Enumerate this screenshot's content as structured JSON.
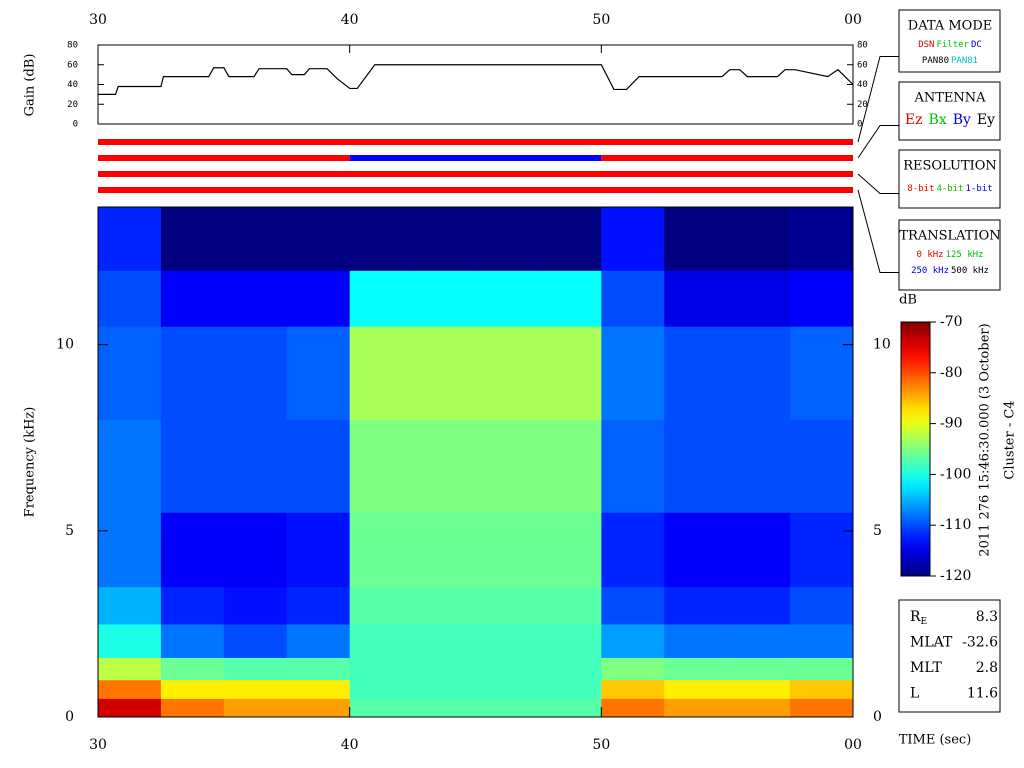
{
  "chart_data": [
    {
      "type": "line",
      "ylabel": "Gain (dB)",
      "color": "#000000",
      "x": [
        30,
        30.7,
        30.8,
        32.5,
        32.6,
        34.4,
        34.6,
        35,
        35.2,
        36.2,
        36.4,
        37.5,
        37.7,
        38.2,
        38.4,
        39.1,
        39.5,
        40,
        40.3,
        41,
        50,
        50.5,
        51,
        51.5,
        54.8,
        55.1,
        55.5,
        55.8,
        57,
        57.3,
        57.7,
        59,
        59.4,
        60
      ],
      "values": [
        30,
        30,
        38,
        38,
        48,
        48,
        57,
        57,
        48,
        48,
        56,
        56,
        50,
        50,
        56,
        56,
        46,
        36,
        36,
        60,
        60,
        35,
        35,
        48,
        48,
        55,
        55,
        48,
        48,
        55,
        55,
        48,
        55,
        40
      ],
      "xlim": [
        30,
        60
      ],
      "xticks": [
        30,
        40,
        50,
        {
          "value": 60,
          "label": "00"
        }
      ],
      "ylim": [
        0,
        80
      ],
      "yticks": [
        0,
        20,
        40,
        60,
        80
      ]
    },
    {
      "type": "segments",
      "xlim": [
        30,
        60
      ],
      "rows": [
        [
          {
            "start": 30,
            "end": 60,
            "color": "#ff0000"
          }
        ],
        [
          {
            "start": 30,
            "end": 40,
            "color": "#ff0000"
          },
          {
            "start": 40,
            "end": 50,
            "color": "#0000ff"
          },
          {
            "start": 50,
            "end": 60,
            "color": "#ff0000"
          }
        ],
        [
          {
            "start": 30,
            "end": 60,
            "color": "#ff0000"
          }
        ],
        [
          {
            "start": 30,
            "end": 60,
            "color": "#ff0000"
          }
        ]
      ]
    },
    {
      "type": "heatmap",
      "ylabel": "Frequency (kHz)",
      "xlabel": "TIME (sec)",
      "colormap": "jet",
      "x_edges": [
        30,
        32.5,
        35,
        37.5,
        40,
        42.5,
        45,
        47.5,
        50,
        52.5,
        55,
        57.5,
        60
      ],
      "y_edges": [
        0,
        0.5,
        1,
        1.6,
        2.5,
        3.5,
        5.5,
        8,
        10.5,
        12,
        13.7
      ],
      "z": [
        [
          -74,
          -82,
          -84,
          -84,
          -97,
          -97,
          -97,
          -97,
          -82,
          -84,
          -84,
          -82
        ],
        [
          -82,
          -88,
          -88,
          -88,
          -98,
          -98,
          -98,
          -98,
          -86,
          -88,
          -88,
          -86
        ],
        [
          -92,
          -96,
          -97,
          -97,
          -98,
          -98,
          -98,
          -98,
          -95,
          -96,
          -96,
          -96
        ],
        [
          -100,
          -108,
          -110,
          -108,
          -98,
          -98,
          -98,
          -98,
          -106,
          -108,
          -108,
          -108
        ],
        [
          -105,
          -112,
          -113,
          -112,
          -97,
          -97,
          -97,
          -97,
          -110,
          -112,
          -112,
          -110
        ],
        [
          -108,
          -114,
          -114,
          -113,
          -96,
          -96,
          -96,
          -96,
          -112,
          -114,
          -114,
          -112
        ],
        [
          -108,
          -110,
          -110,
          -110,
          -95,
          -95,
          -95,
          -95,
          -109,
          -110,
          -110,
          -110
        ],
        [
          -109,
          -110,
          -110,
          -109,
          -93,
          -93,
          -93,
          -93,
          -108,
          -110,
          -110,
          -109
        ],
        [
          -110,
          -114,
          -114,
          -114,
          -101,
          -101,
          -101,
          -101,
          -110,
          -115,
          -115,
          -114
        ],
        [
          -112,
          -120,
          -120,
          -120,
          -120,
          -120,
          -120,
          -120,
          -113,
          -120,
          -120,
          -119
        ]
      ],
      "xlim": [
        30,
        60
      ],
      "xticks": [
        30,
        40,
        50,
        {
          "value": 60,
          "label": "00"
        }
      ],
      "ylim": [
        0,
        13.7
      ],
      "yticks": [
        0,
        5,
        10
      ],
      "colorbar": {
        "label": "dB",
        "lim": [
          -120,
          -70
        ],
        "ticks": [
          -70,
          -80,
          -90,
          -100,
          -110,
          -120
        ]
      }
    }
  ],
  "side_panels": [
    {
      "title": "DATA MODE",
      "rows": [
        [
          {
            "text": "DSN",
            "color": "#e00000"
          },
          {
            "text": "Filter",
            "color": "#00c000"
          },
          {
            "text": "DC",
            "color": "#0000e0"
          }
        ],
        [
          {
            "text": "PAN80",
            "color": "#000000"
          },
          {
            "text": "PAN81",
            "color": "#00c0c0"
          }
        ]
      ]
    },
    {
      "title": "ANTENNA",
      "rows": [
        [
          {
            "text": "Ez",
            "color": "#e00000"
          },
          {
            "text": "Bx",
            "color": "#00c000"
          },
          {
            "text": "By",
            "color": "#0000e0"
          },
          {
            "text": "Ey",
            "color": "#000000"
          }
        ]
      ]
    },
    {
      "title": "RESOLUTION",
      "rows": [
        [
          {
            "text": "8-bit",
            "color": "#e00000"
          },
          {
            "text": "4-bit",
            "color": "#00c000"
          },
          {
            "text": "1-bit",
            "color": "#0000e0"
          }
        ]
      ]
    },
    {
      "title": "TRANSLATION",
      "rows": [
        [
          {
            "text": "0 kHz",
            "color": "#e00000"
          },
          {
            "text": "125 kHz",
            "color": "#00c000"
          }
        ],
        [
          {
            "text": "250 kHz",
            "color": "#0000e0"
          },
          {
            "text": "500 kHz",
            "color": "#000000"
          }
        ]
      ]
    }
  ],
  "annotations": {
    "date": "2011 276 15:46:30.000 (3 October)",
    "spacecraft": "Cluster - C4"
  },
  "ephemeris": [
    {
      "label": "R",
      "sub": "E",
      "value": 8.3
    },
    {
      "label": "MLAT",
      "value": -32.6
    },
    {
      "label": "MLT",
      "value": 2.8
    },
    {
      "label": "L",
      "value": 11.6
    }
  ]
}
